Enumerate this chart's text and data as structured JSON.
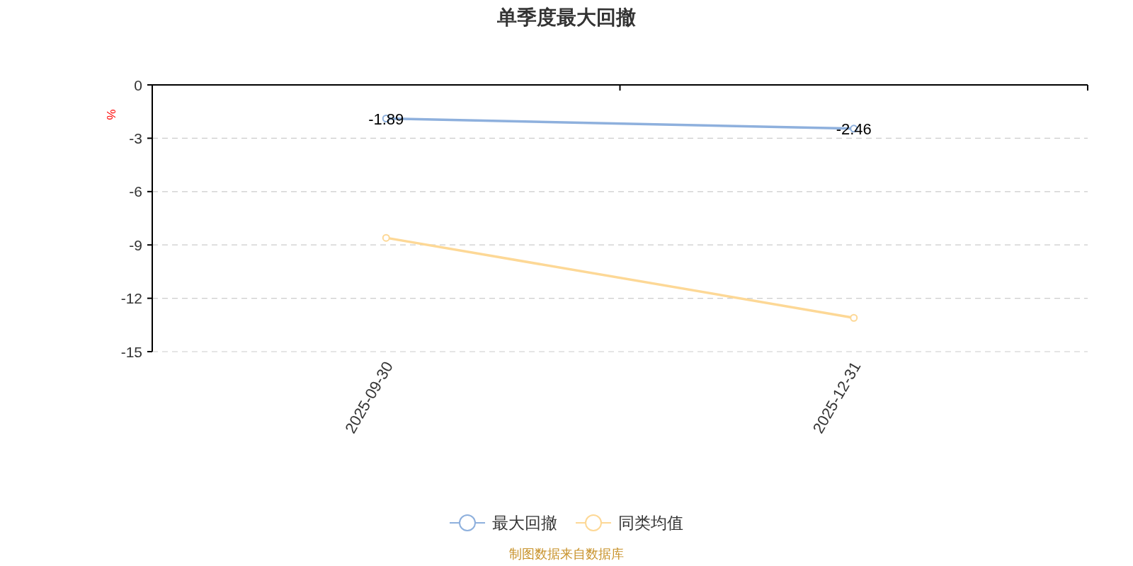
{
  "chart_data": {
    "type": "line",
    "title": "单季度最大回撤",
    "ylabel": "%",
    "categories": [
      "2025-09-30",
      "2025-12-31"
    ],
    "series": [
      {
        "name": "最大回撤",
        "color": "#8eb0dd",
        "values": [
          -1.89,
          -2.46
        ],
        "value_labels": [
          "-1.89",
          "-2.46"
        ]
      },
      {
        "name": "同类均值",
        "color": "#fdd896",
        "values": [
          -8.6,
          -13.1
        ]
      }
    ],
    "ylim": [
      -15,
      0
    ],
    "yticks": [
      0,
      -3,
      -6,
      -9,
      -12,
      -15
    ],
    "grid": "y",
    "legend": "bottom",
    "marker": "circle",
    "line_style": "solid",
    "annotations": [
      "制图数据来自数据库"
    ]
  }
}
